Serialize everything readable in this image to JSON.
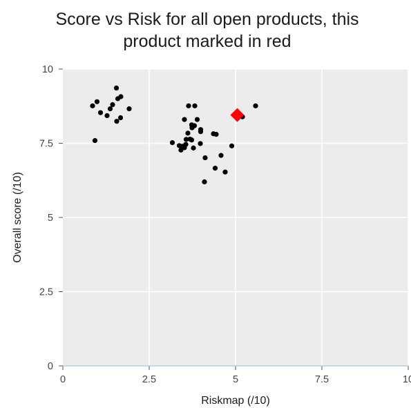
{
  "chart_data": {
    "type": "scatter",
    "title_lines": [
      "Score vs Risk for all open products, this",
      "product marked in red"
    ],
    "xlabel": "Riskmap (/10)",
    "ylabel": "Overall score (/10)",
    "xlim": [
      0,
      10
    ],
    "ylim": [
      0,
      10
    ],
    "xticks": [
      0,
      2.5,
      5,
      7.5,
      10
    ],
    "xtick_labels": [
      "0",
      "2.5",
      "5",
      "7.5",
      "10"
    ],
    "yticks": [
      0,
      2.5,
      5,
      7.5,
      10
    ],
    "ytick_labels": [
      "0",
      "2.5",
      "5",
      "7.5",
      "10"
    ],
    "grid": true,
    "background": "#ececec",
    "series": [
      {
        "marker": "circle",
        "color": "#000000",
        "points": [
          {
            "x": 0.86,
            "y": 8.76
          },
          {
            "x": 0.99,
            "y": 8.9
          },
          {
            "x": 1.09,
            "y": 8.53
          },
          {
            "x": 1.28,
            "y": 8.43
          },
          {
            "x": 1.37,
            "y": 8.66
          },
          {
            "x": 1.44,
            "y": 8.8
          },
          {
            "x": 1.55,
            "y": 9.36
          },
          {
            "x": 1.59,
            "y": 9.0
          },
          {
            "x": 1.68,
            "y": 9.07
          },
          {
            "x": 1.67,
            "y": 8.36
          },
          {
            "x": 1.56,
            "y": 8.24
          },
          {
            "x": 1.92,
            "y": 8.66
          },
          {
            "x": 0.93,
            "y": 7.59
          },
          {
            "x": 3.64,
            "y": 8.76
          },
          {
            "x": 3.82,
            "y": 8.76
          },
          {
            "x": 3.52,
            "y": 8.3
          },
          {
            "x": 3.89,
            "y": 8.3
          },
          {
            "x": 3.73,
            "y": 8.12
          },
          {
            "x": 3.81,
            "y": 8.09
          },
          {
            "x": 3.74,
            "y": 8.02
          },
          {
            "x": 3.99,
            "y": 7.96
          },
          {
            "x": 3.99,
            "y": 7.89
          },
          {
            "x": 3.62,
            "y": 7.84
          },
          {
            "x": 4.36,
            "y": 7.82
          },
          {
            "x": 4.44,
            "y": 7.8
          },
          {
            "x": 3.57,
            "y": 7.63
          },
          {
            "x": 3.68,
            "y": 7.64
          },
          {
            "x": 3.73,
            "y": 7.61
          },
          {
            "x": 3.17,
            "y": 7.52
          },
          {
            "x": 3.37,
            "y": 7.42
          },
          {
            "x": 3.46,
            "y": 7.4
          },
          {
            "x": 3.56,
            "y": 7.46
          },
          {
            "x": 3.98,
            "y": 7.49
          },
          {
            "x": 3.52,
            "y": 7.35
          },
          {
            "x": 3.42,
            "y": 7.27
          },
          {
            "x": 3.78,
            "y": 7.34
          },
          {
            "x": 4.89,
            "y": 7.41
          },
          {
            "x": 4.58,
            "y": 7.09
          },
          {
            "x": 4.12,
            "y": 7.01
          },
          {
            "x": 4.41,
            "y": 6.66
          },
          {
            "x": 4.7,
            "y": 6.53
          },
          {
            "x": 4.1,
            "y": 6.2
          },
          {
            "x": 5.58,
            "y": 8.76
          },
          {
            "x": 5.2,
            "y": 8.39
          }
        ]
      },
      {
        "marker": "diamond",
        "color": "#ff0000",
        "points": [
          {
            "x": 5.05,
            "y": 8.45
          }
        ]
      }
    ]
  }
}
